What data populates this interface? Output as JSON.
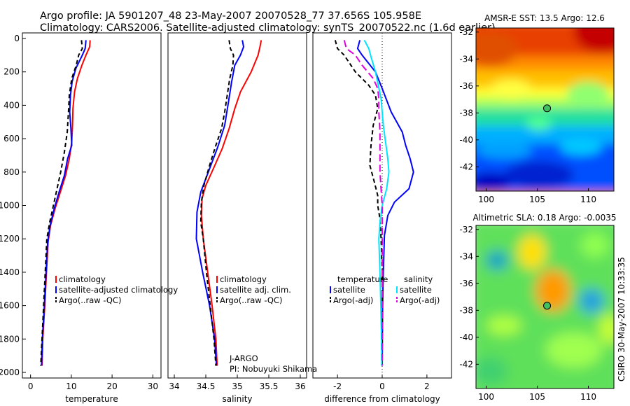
{
  "header": {
    "title_line1": "Argo profile: JA 5901207_48 23-May-2007 20070528_77 37.656S 105.958E",
    "title_line2": "Climatology: CARS2006. Satellite-adjusted climatology: synTS_20070522.nc (1.6d earlier)"
  },
  "colors": {
    "climatology": "#ff0000",
    "satellite": "#0000ff",
    "argo": "#000000",
    "sat_salinity": "#00e5ff",
    "argo_adj_salinity": "#e000e0"
  },
  "footer": {
    "provenance": "CSIRO 30-May-2007 10:33:35",
    "project": "J-ARGO",
    "pi": "PI: Nobuyuki Shikama"
  },
  "chart_data": [
    {
      "type": "line",
      "id": "temperature",
      "xlabel": "temperature",
      "ylabel": "",
      "xlim": [
        -2,
        32
      ],
      "ylim": [
        2000,
        0
      ],
      "xticks": [
        0,
        10,
        20,
        30
      ],
      "yticks": [
        0,
        200,
        400,
        600,
        800,
        1000,
        1200,
        1400,
        1600,
        1800,
        2000
      ],
      "legend": [
        "climatology",
        "satellite-adjusted climatology",
        "Argo(..raw -QC)"
      ],
      "series": [
        {
          "name": "climatology",
          "color": "#ff0000",
          "dash": "",
          "points": [
            [
              14.6,
              10
            ],
            [
              14.5,
              50
            ],
            [
              13.6,
              100
            ],
            [
              12.6,
              160
            ],
            [
              11.5,
              240
            ],
            [
              10.8,
              320
            ],
            [
              10.4,
              420
            ],
            [
              10.3,
              520
            ],
            [
              10.1,
              620
            ],
            [
              9.5,
              720
            ],
            [
              8.6,
              820
            ],
            [
              7.3,
              920
            ],
            [
              6.0,
              1020
            ],
            [
              4.9,
              1120
            ],
            [
              4.3,
              1220
            ],
            [
              3.9,
              1400
            ],
            [
              3.5,
              1600
            ],
            [
              3.0,
              1800
            ],
            [
              2.8,
              1960
            ]
          ]
        },
        {
          "name": "satellite-adjusted climatology",
          "color": "#0000ff",
          "dash": "",
          "points": [
            [
              13.6,
              10
            ],
            [
              13.4,
              60
            ],
            [
              12.7,
              100
            ],
            [
              11.1,
              180
            ],
            [
              10.2,
              260
            ],
            [
              9.8,
              340
            ],
            [
              9.6,
              440
            ],
            [
              9.9,
              540
            ],
            [
              10.1,
              640
            ],
            [
              9.1,
              720
            ],
            [
              8.3,
              820
            ],
            [
              7.0,
              920
            ],
            [
              5.8,
              1020
            ],
            [
              4.8,
              1120
            ],
            [
              4.2,
              1220
            ],
            [
              3.8,
              1400
            ],
            [
              3.4,
              1600
            ],
            [
              2.9,
              1800
            ],
            [
              2.7,
              1960
            ]
          ]
        },
        {
          "name": "Argo(..raw -QC)",
          "color": "#000000",
          "dash": "6,4",
          "points": [
            [
              12.5,
              10
            ],
            [
              12.7,
              60
            ],
            [
              11.8,
              100
            ],
            [
              11.2,
              160
            ],
            [
              10.1,
              240
            ],
            [
              9.5,
              340
            ],
            [
              9.3,
              440
            ],
            [
              9.0,
              560
            ],
            [
              8.3,
              680
            ],
            [
              7.4,
              800
            ],
            [
              6.5,
              900
            ],
            [
              5.6,
              1000
            ],
            [
              4.7,
              1100
            ],
            [
              4.0,
              1200
            ],
            [
              3.6,
              1400
            ],
            [
              3.2,
              1600
            ],
            [
              2.8,
              1800
            ],
            [
              2.5,
              1960
            ]
          ]
        }
      ]
    },
    {
      "type": "line",
      "id": "salinity",
      "xlabel": "salinity",
      "ylabel": "",
      "xlim": [
        33.9,
        36.1
      ],
      "ylim": [
        2000,
        0
      ],
      "xticks": [
        34,
        34.5,
        35,
        35.5,
        36
      ],
      "legend": [
        "climatology",
        "satellite adj. clim.",
        "Argo(..raw -QC)"
      ],
      "series": [
        {
          "name": "climatology",
          "color": "#ff0000",
          "dash": "",
          "points": [
            [
              35.38,
              10
            ],
            [
              35.36,
              50
            ],
            [
              35.33,
              100
            ],
            [
              35.22,
              200
            ],
            [
              35.05,
              320
            ],
            [
              34.96,
              420
            ],
            [
              34.87,
              540
            ],
            [
              34.76,
              660
            ],
            [
              34.62,
              780
            ],
            [
              34.5,
              880
            ],
            [
              34.44,
              960
            ],
            [
              34.43,
              1060
            ],
            [
              34.46,
              1200
            ],
            [
              34.53,
              1400
            ],
            [
              34.6,
              1600
            ],
            [
              34.66,
              1800
            ],
            [
              34.68,
              1960
            ]
          ]
        },
        {
          "name": "satellite adj. clim.",
          "color": "#0000ff",
          "dash": "",
          "points": [
            [
              35.08,
              10
            ],
            [
              35.1,
              50
            ],
            [
              35.05,
              100
            ],
            [
              34.96,
              160
            ],
            [
              34.91,
              260
            ],
            [
              34.86,
              380
            ],
            [
              34.8,
              520
            ],
            [
              34.69,
              650
            ],
            [
              34.54,
              800
            ],
            [
              34.42,
              920
            ],
            [
              34.36,
              1040
            ],
            [
              34.35,
              1200
            ],
            [
              34.45,
              1400
            ],
            [
              34.56,
              1600
            ],
            [
              34.64,
              1800
            ],
            [
              34.67,
              1960
            ]
          ]
        },
        {
          "name": "Argo(..raw -QC)",
          "color": "#000000",
          "dash": "6,4",
          "points": [
            [
              34.87,
              10
            ],
            [
              34.89,
              60
            ],
            [
              34.94,
              100
            ],
            [
              34.93,
              160
            ],
            [
              34.88,
              240
            ],
            [
              34.84,
              340
            ],
            [
              34.8,
              440
            ],
            [
              34.75,
              540
            ],
            [
              34.66,
              640
            ],
            [
              34.56,
              760
            ],
            [
              34.47,
              880
            ],
            [
              34.43,
              980
            ],
            [
              34.42,
              1100
            ],
            [
              34.46,
              1200
            ],
            [
              34.51,
              1400
            ],
            [
              34.57,
              1600
            ],
            [
              34.63,
              1800
            ],
            [
              34.66,
              1960
            ]
          ]
        }
      ]
    },
    {
      "type": "line",
      "id": "difference",
      "xlabel": "difference from climatology",
      "ylabel": "",
      "xlim": [
        -3.1,
        3.1
      ],
      "ylim": [
        2000,
        0
      ],
      "xticks": [
        -2,
        0,
        2
      ],
      "legend_groups": [
        {
          "title": "temperature",
          "items": [
            "satellite",
            "Argo(-adj)"
          ]
        },
        {
          "title": "salinity",
          "items": [
            "satellite",
            "Argo(-adj)"
          ]
        }
      ],
      "series": [
        {
          "name": "satellite",
          "group": "temperature",
          "color": "#0000ff",
          "dash": "",
          "points": [
            [
              -1.0,
              10
            ],
            [
              -1.1,
              60
            ],
            [
              -0.9,
              100
            ],
            [
              -0.3,
              200
            ],
            [
              0.0,
              300
            ],
            [
              0.4,
              440
            ],
            [
              0.9,
              560
            ],
            [
              1.05,
              640
            ],
            [
              1.25,
              720
            ],
            [
              1.4,
              800
            ],
            [
              1.2,
              900
            ],
            [
              0.55,
              980
            ],
            [
              0.25,
              1060
            ],
            [
              0.1,
              1180
            ],
            [
              0.05,
              1400
            ],
            [
              0.02,
              1600
            ],
            [
              0.01,
              1800
            ],
            [
              0.0,
              1960
            ]
          ]
        },
        {
          "name": "Argo(-adj)",
          "group": "temperature",
          "color": "#000000",
          "dash": "6,4",
          "points": [
            [
              -2.1,
              10
            ],
            [
              -2.0,
              60
            ],
            [
              -1.7,
              100
            ],
            [
              -1.2,
              200
            ],
            [
              -0.6,
              280
            ],
            [
              -0.3,
              340
            ],
            [
              -0.2,
              420
            ],
            [
              -0.4,
              520
            ],
            [
              -0.5,
              640
            ],
            [
              -0.55,
              760
            ],
            [
              -0.35,
              860
            ],
            [
              -0.2,
              940
            ],
            [
              -0.2,
              1000
            ],
            [
              -0.1,
              1080
            ],
            [
              -0.05,
              1200
            ],
            [
              0.0,
              1400
            ],
            [
              0.0,
              1960
            ]
          ]
        },
        {
          "name": "satellite",
          "group": "salinity",
          "color": "#00e5ff",
          "dash": "",
          "points": [
            [
              -0.8,
              10
            ],
            [
              -0.6,
              60
            ],
            [
              -0.5,
              110
            ],
            [
              -0.3,
              200
            ],
            [
              -0.05,
              360
            ],
            [
              0.0,
              440
            ],
            [
              0.05,
              520
            ],
            [
              0.15,
              620
            ],
            [
              0.25,
              720
            ],
            [
              0.3,
              800
            ],
            [
              0.2,
              900
            ],
            [
              0.0,
              1000
            ],
            [
              -0.1,
              1100
            ],
            [
              -0.15,
              1200
            ],
            [
              -0.1,
              1400
            ],
            [
              -0.06,
              1600
            ],
            [
              -0.03,
              1800
            ],
            [
              -0.02,
              1960
            ]
          ]
        },
        {
          "name": "Argo(-adj)",
          "group": "salinity",
          "color": "#e000e0",
          "dash": "10,5",
          "points": [
            [
              -1.7,
              10
            ],
            [
              -1.6,
              60
            ],
            [
              -1.2,
              100
            ],
            [
              -0.9,
              160
            ],
            [
              -0.4,
              240
            ],
            [
              -0.2,
              300
            ],
            [
              -0.15,
              360
            ],
            [
              -0.15,
              440
            ],
            [
              -0.1,
              560
            ],
            [
              -0.1,
              700
            ],
            [
              -0.1,
              800
            ],
            [
              -0.05,
              900
            ],
            [
              0.0,
              1000
            ],
            [
              0.0,
              1960
            ]
          ]
        }
      ]
    },
    {
      "type": "heatmap",
      "id": "sst-map",
      "title": "AMSR-E SST: 13.5 Argo: 12.6",
      "xlim": [
        99,
        112.5
      ],
      "ylim": [
        -43.8,
        -31.7
      ],
      "xticks": [
        100,
        105,
        110
      ],
      "yticks": [
        -32,
        -34,
        -36,
        -38,
        -40,
        -42
      ],
      "marker": {
        "lon": 105.958,
        "lat": -37.656
      },
      "colorscale": [
        "#00008f",
        "#0000ff",
        "#00a0ff",
        "#00ffff",
        "#80ff80",
        "#ffff00",
        "#ff8000",
        "#ff0000",
        "#b00000"
      ],
      "description_values": "surface temperature field, warm north (~16-18), cold south (~10-11)"
    },
    {
      "type": "heatmap",
      "id": "sla-map",
      "title": "Altimetric SLA: 0.18 Argo: -0.0035",
      "xlim": [
        99,
        112.5
      ],
      "ylim": [
        -43.8,
        -31.7
      ],
      "xticks": [
        100,
        105,
        110
      ],
      "yticks": [
        -32,
        -34,
        -36,
        -38,
        -40,
        -42
      ],
      "marker": {
        "lon": 105.958,
        "lat": -37.656
      },
      "colorscale": [
        "#0000ff",
        "#00a0ff",
        "#00ffff",
        "#80ff80",
        "#ffff00",
        "#ff8000",
        "#ff0000"
      ]
    }
  ]
}
